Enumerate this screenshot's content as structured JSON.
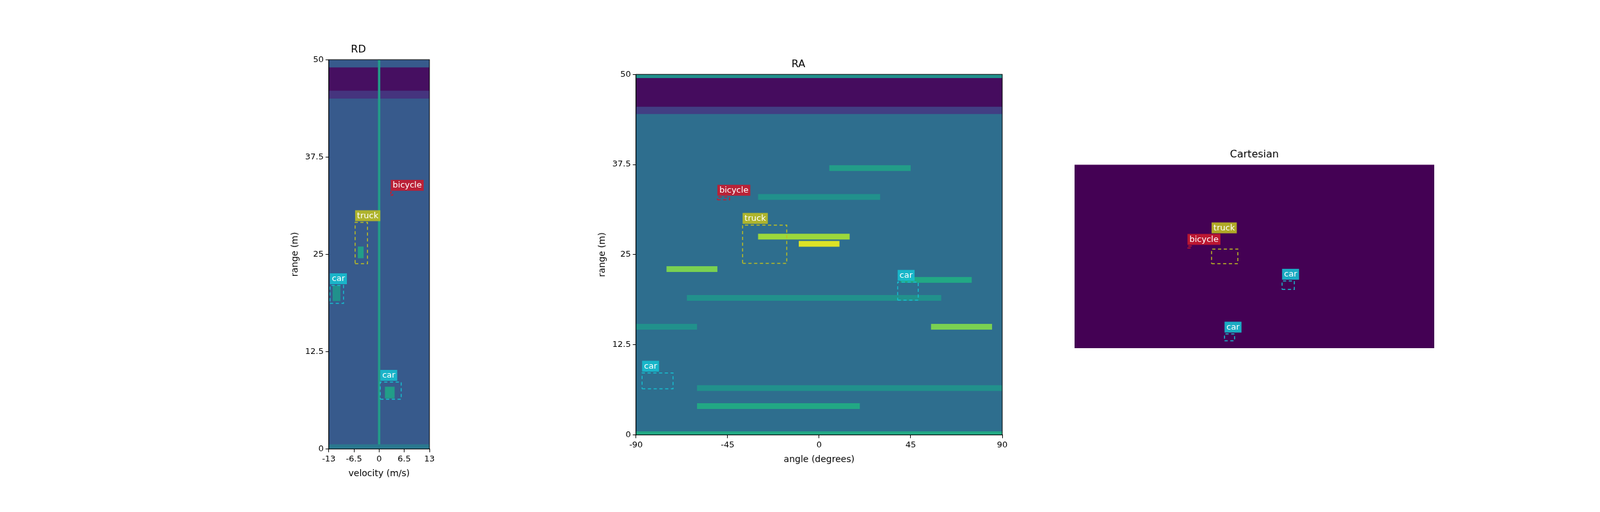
{
  "chart_data": [
    {
      "type": "heatmap",
      "title": "RD",
      "xlabel": "velocity (m/s)",
      "ylabel": "range (m)",
      "xlim": [
        -13,
        13
      ],
      "xticks": [
        -13,
        -6.5,
        0,
        6.5,
        13
      ],
      "ylim": [
        0,
        50
      ],
      "yticks": [
        0,
        12.5,
        25,
        37.5,
        50
      ],
      "grid": false,
      "line_style": "dashed",
      "background_level": 0.28,
      "cells": [
        {
          "x": [
            -13,
            13
          ],
          "y": [
            46,
            49
          ],
          "level": 0.04
        },
        {
          "x": [
            -13,
            13
          ],
          "y": [
            45,
            46
          ],
          "level": 0.15
        },
        {
          "x": [
            -0.3,
            0.3
          ],
          "y": [
            0,
            50
          ],
          "level": 0.55
        },
        {
          "x": [
            -12,
            -10
          ],
          "y": [
            19,
            21
          ],
          "level": 0.5
        },
        {
          "x": [
            -5.5,
            -4
          ],
          "y": [
            24.5,
            26
          ],
          "level": 0.55
        },
        {
          "x": [
            1.5,
            4
          ],
          "y": [
            6.5,
            8
          ],
          "level": 0.55
        },
        {
          "x": [
            -13,
            13
          ],
          "y": [
            0,
            0.6
          ],
          "level": 0.4
        }
      ],
      "boxes": [
        {
          "label": "car",
          "color": "#17becf",
          "x": [
            -12.7,
            -9.2
          ],
          "y": [
            18.7,
            21.0
          ]
        },
        {
          "label": "truck",
          "color": "#bcbd22",
          "x": [
            -6.2,
            -3.0
          ],
          "y": [
            23.8,
            29.1
          ]
        },
        {
          "label": "bicycle",
          "color": "#c9192e",
          "x": [
            3.0,
            3.5
          ],
          "y": [
            32.6,
            33.0
          ]
        },
        {
          "label": "car",
          "color": "#17becf",
          "x": [
            0.3,
            5.7
          ],
          "y": [
            6.4,
            8.6
          ]
        }
      ]
    },
    {
      "type": "heatmap",
      "title": "RA",
      "xlabel": "angle (degrees)",
      "ylabel": "range (m)",
      "xlim": [
        -90,
        90
      ],
      "xticks": [
        -90,
        -45,
        0,
        45,
        90
      ],
      "ylim": [
        0,
        50
      ],
      "yticks": [
        0,
        12.5,
        25,
        37.5,
        50
      ],
      "grid": false,
      "line_style": "dashed",
      "background_level": 0.36,
      "cells": [
        {
          "x": [
            -90,
            90
          ],
          "y": [
            45.5,
            49.5
          ],
          "level": 0.03
        },
        {
          "x": [
            -90,
            90
          ],
          "y": [
            44.5,
            45.5
          ],
          "level": 0.18
        },
        {
          "x": [
            -90,
            90
          ],
          "y": [
            49.5,
            50
          ],
          "level": 0.5
        },
        {
          "x": [
            -30,
            15
          ],
          "y": [
            27.1,
            27.9
          ],
          "level": 0.85
        },
        {
          "x": [
            -10,
            10
          ],
          "y": [
            26.1,
            26.9
          ],
          "level": 0.95
        },
        {
          "x": [
            -75,
            -50
          ],
          "y": [
            22.6,
            23.4
          ],
          "level": 0.8
        },
        {
          "x": [
            55,
            85
          ],
          "y": [
            14.6,
            15.4
          ],
          "level": 0.8
        },
        {
          "x": [
            40,
            75
          ],
          "y": [
            21.1,
            21.9
          ],
          "level": 0.6
        },
        {
          "x": [
            -65,
            60
          ],
          "y": [
            18.6,
            19.4
          ],
          "level": 0.5
        },
        {
          "x": [
            -60,
            90
          ],
          "y": [
            6.1,
            6.9
          ],
          "level": 0.5
        },
        {
          "x": [
            -60,
            20
          ],
          "y": [
            3.6,
            4.4
          ],
          "level": 0.6
        },
        {
          "x": [
            -30,
            30
          ],
          "y": [
            32.6,
            33.4
          ],
          "level": 0.5
        },
        {
          "x": [
            5,
            45
          ],
          "y": [
            36.6,
            37.4
          ],
          "level": 0.55
        },
        {
          "x": [
            -90,
            -60
          ],
          "y": [
            14.6,
            15.4
          ],
          "level": 0.5
        },
        {
          "x": [
            -90,
            90
          ],
          "y": [
            0,
            0.5
          ],
          "level": 0.6
        }
      ],
      "boxes": [
        {
          "label": "bicycle",
          "color": "#c9192e",
          "x": [
            -50,
            -44
          ],
          "y": [
            32.6,
            33.0
          ]
        },
        {
          "label": "truck",
          "color": "#bcbd22",
          "x": [
            -37.6,
            -15.9
          ],
          "y": [
            23.8,
            29.1
          ]
        },
        {
          "label": "car",
          "color": "#17becf",
          "x": [
            38.6,
            48.7
          ],
          "y": [
            18.7,
            21.2
          ]
        },
        {
          "label": "car",
          "color": "#17becf",
          "x": [
            -87,
            -71.8
          ],
          "y": [
            6.4,
            8.6
          ]
        }
      ]
    },
    {
      "type": "heatmap",
      "title": "Cartesian",
      "xlim": [
        -50,
        50
      ],
      "ylim": [
        0,
        50
      ],
      "tick_labels": false,
      "grid": false,
      "line_style": "dashed",
      "background_level": 0.0,
      "cells": [],
      "boxes": [
        {
          "label": "bicycle",
          "color": "#c9192e",
          "x": [
            -18.6,
            -17.5
          ],
          "y": [
            27.3,
            27.8
          ]
        },
        {
          "label": "truck",
          "color": "#bcbd22",
          "x": [
            -11.9,
            -4.6
          ],
          "y": [
            23.0,
            27.0
          ]
        },
        {
          "label": "car",
          "color": "#17becf",
          "x": [
            7.7,
            11.1
          ],
          "y": [
            16.0,
            18.3
          ]
        },
        {
          "label": "car",
          "color": "#17becf",
          "x": [
            -8.3,
            -5.5
          ],
          "y": [
            2.0,
            3.9
          ]
        }
      ]
    }
  ]
}
